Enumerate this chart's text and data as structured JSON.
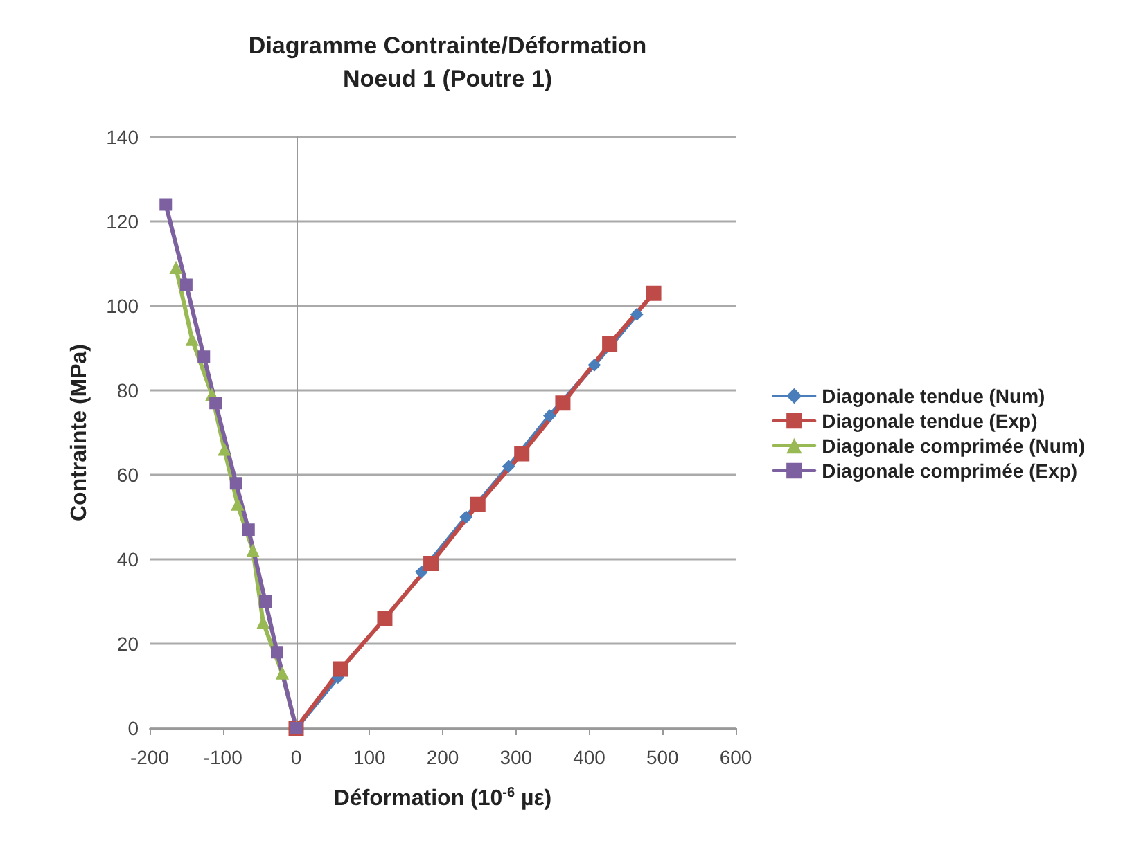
{
  "chart_data": {
    "type": "line",
    "title": "Diagramme Contrainte/Déformation\nNoeud 1 (Poutre 1)",
    "xlabel": "Déformation (10$^{-6}$ µε)",
    "ylabel": "Contrainte (MPa)",
    "series": [
      {
        "name": "Diagonale tendue (Num)",
        "color": "#4a7ebb",
        "marker": "diamond",
        "x": [
          0,
          57,
          114,
          171,
          232,
          290,
          346,
          407,
          465
        ],
        "values": [
          0,
          12,
          null,
          37,
          50,
          62,
          74,
          86,
          98
        ]
      },
      {
        "name": "Diagonale tendue (Exp)",
        "color": "#be4b48",
        "marker": "square",
        "x": [
          0,
          61,
          121,
          184,
          248,
          308,
          364,
          428,
          488
        ],
        "values": [
          0,
          14,
          26,
          39,
          53,
          65,
          77,
          91,
          103
        ]
      },
      {
        "name": "Diagonale comprimée (Num)",
        "color": "#98b954",
        "marker": "triangle",
        "x": [
          0,
          -19,
          -45,
          -59,
          -80,
          -98,
          -115,
          -142,
          -164
        ],
        "values": [
          0,
          13,
          25,
          42,
          53,
          66,
          79,
          92,
          109
        ]
      },
      {
        "name": "Diagonale comprimée (Exp)",
        "color": "#7d60a0",
        "marker": "cross",
        "x": [
          0,
          -26,
          -42,
          -65,
          -82,
          -110,
          -126,
          -150,
          -178
        ],
        "values": [
          0,
          18,
          30,
          47,
          58,
          77,
          88,
          105,
          124
        ]
      }
    ],
    "xlim": [
      -200,
      600
    ],
    "xticks": [
      -200,
      -100,
      0,
      100,
      200,
      300,
      400,
      500,
      600
    ],
    "ylim": [
      0,
      140
    ],
    "yticks": [
      0,
      20,
      40,
      60,
      80,
      100,
      120,
      140
    ],
    "grid": "y",
    "legend": "right",
    "line_style": "solid"
  }
}
